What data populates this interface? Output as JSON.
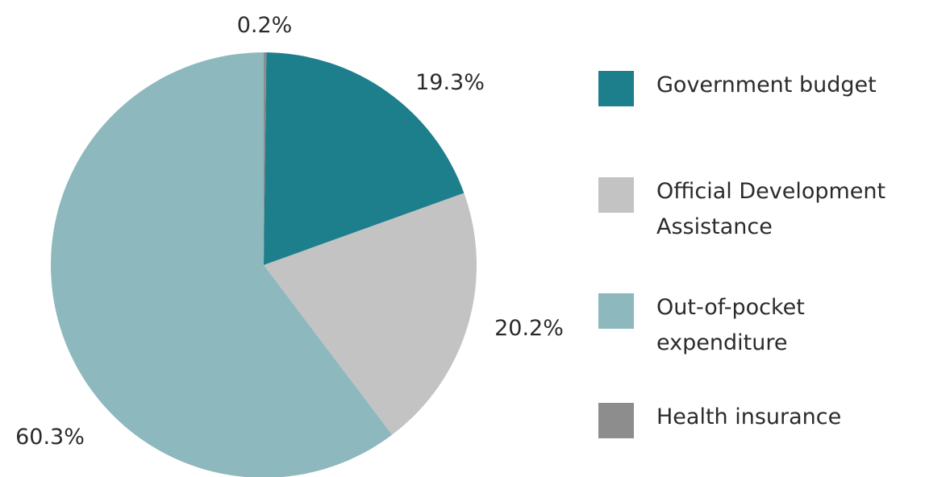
{
  "chart_data": {
    "type": "pie",
    "title": "",
    "slices": [
      {
        "label": "Health insurance",
        "value": 0.2,
        "display": "0.2%",
        "color": "#8d8d8d"
      },
      {
        "label": "Government budget",
        "value": 19.3,
        "display": "19.3%",
        "color": "#1e7f8c"
      },
      {
        "label": "Official Development Assistance",
        "value": 20.2,
        "display": "20.2%",
        "color": "#c3c3c3"
      },
      {
        "label": "Out-of-pocket expenditure",
        "value": 60.3,
        "display": "60.3%",
        "color": "#8db8bd"
      }
    ],
    "legend": {
      "placement": "right",
      "items": [
        {
          "label": "Government budget",
          "color": "#1e7f8c"
        },
        {
          "label": "Official Development\nAssistance",
          "color": "#c3c3c3"
        },
        {
          "label": "Out-of-pocket\nexpenditure",
          "color": "#8db8bd"
        },
        {
          "label": "Health insurance",
          "color": "#8d8d8d"
        }
      ]
    }
  }
}
